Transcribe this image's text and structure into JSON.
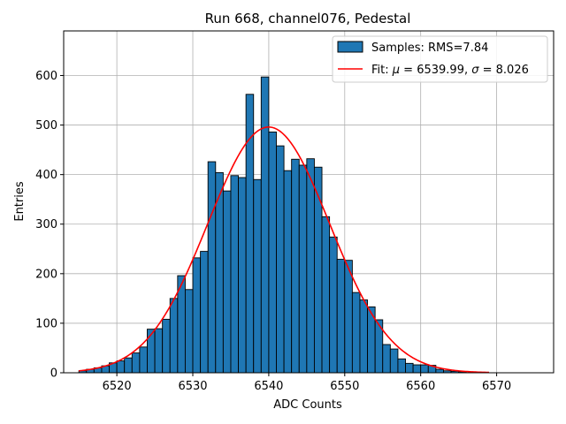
{
  "chart_data": {
    "type": "histogram",
    "title": "Run 668, channel076, Pedestal",
    "xlabel": "ADC Counts",
    "ylabel": "Entries",
    "xlim": [
      6513.0,
      6577.5
    ],
    "ylim": [
      0,
      690
    ],
    "xticks": [
      6520,
      6530,
      6540,
      6550,
      6560,
      6570
    ],
    "yticks": [
      0,
      100,
      200,
      300,
      400,
      500,
      600
    ],
    "grid": true,
    "legend_position": "top-right",
    "bin_start": 6515,
    "bin_width": 1,
    "counts": [
      4,
      7,
      10,
      14,
      20,
      24,
      30,
      40,
      52,
      88,
      89,
      108,
      150,
      196,
      168,
      232,
      245,
      426,
      404,
      367,
      398,
      394,
      562,
      390,
      597,
      486,
      458,
      408,
      431,
      419,
      432,
      415,
      315,
      274,
      229,
      227,
      162,
      147,
      133,
      107,
      57,
      48,
      28,
      19,
      16,
      16,
      15,
      7,
      4,
      3,
      2
    ],
    "bar_color": "#1f77b4",
    "fit": {
      "mu": 6539.99,
      "sigma": 8.026,
      "amplitude": 496,
      "x_range": [
        6515,
        6569
      ],
      "color": "#ff0000"
    },
    "legend": {
      "samples_label": "Samples: RMS=7.84",
      "fit_prefix": "Fit: ",
      "fit_mu_symbol": "μ",
      "fit_mu_value": " = 6539.99, ",
      "fit_sigma_symbol": "σ",
      "fit_sigma_value": " = 8.026"
    }
  }
}
